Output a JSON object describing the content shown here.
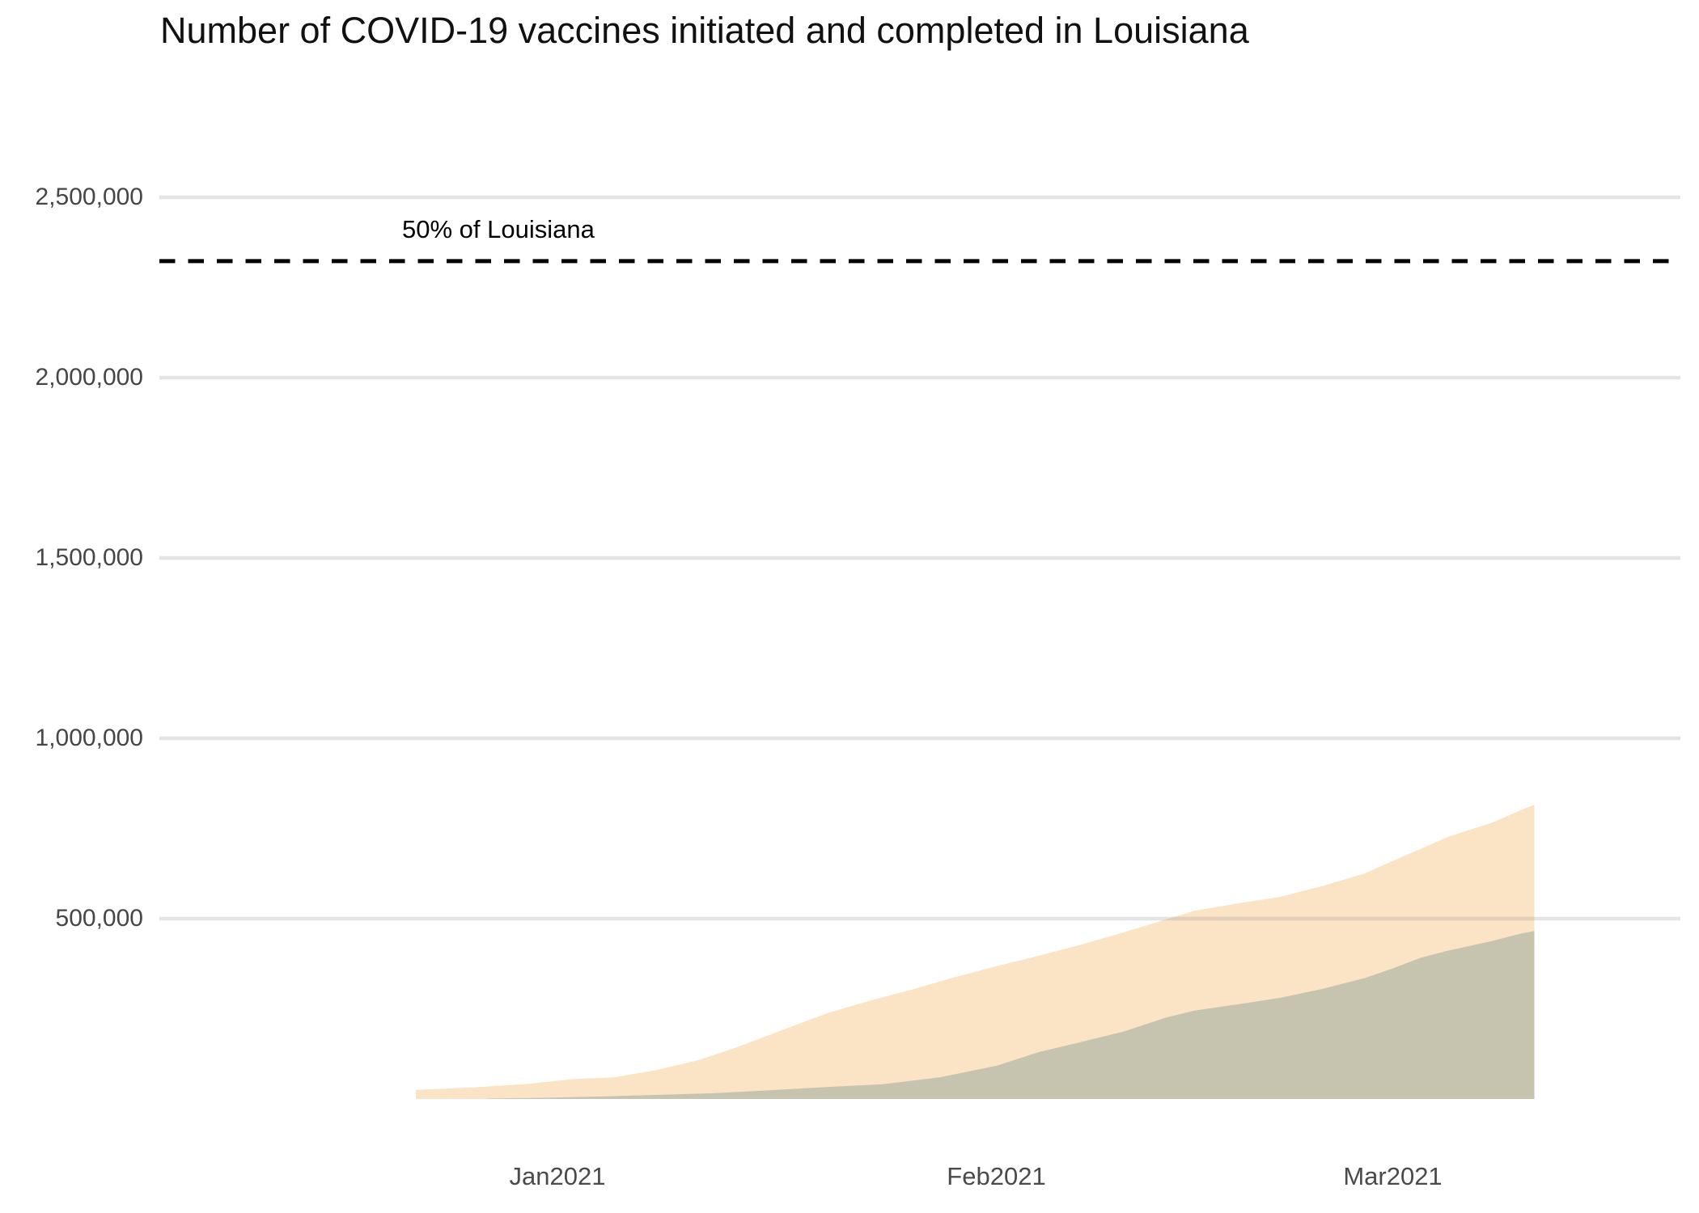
{
  "title": "Number of COVID-19 vaccines initiated and completed in Louisiana",
  "background_color": "#ffffff",
  "chart_data": {
    "type": "area",
    "title": "Number of COVID-19 vaccines initiated and completed in Louisiana",
    "xlabel": "",
    "ylabel": "",
    "grid": true,
    "gridline_color": "#e9e9e9",
    "legend_position": "none",
    "x_axis": {
      "ticks": [
        {
          "label": "Jan2021",
          "date": "2021-01-01"
        },
        {
          "label": "Feb2021",
          "date": "2021-02-01"
        },
        {
          "label": "Mar2021",
          "date": "2021-03-01"
        }
      ]
    },
    "y_axis": {
      "range": [
        0,
        2600000
      ],
      "ticks": [
        {
          "label": "500,000",
          "value": 500000
        },
        {
          "label": "1,000,000",
          "value": 1000000
        },
        {
          "label": "1,500,000",
          "value": 1500000
        },
        {
          "label": "2,000,000",
          "value": 2000000
        },
        {
          "label": "2,500,000",
          "value": 2500000
        }
      ]
    },
    "reference_line": {
      "label": "50% of Louisiana",
      "value": 2323000,
      "style": "dashed",
      "color": "#000000"
    },
    "series": [
      {
        "name": "initiated",
        "color": "#fbe3c5",
        "points": [
          {
            "date": "2020-12-22",
            "value": 25000
          },
          {
            "date": "2020-12-26",
            "value": 32000
          },
          {
            "date": "2020-12-30",
            "value": 42000
          },
          {
            "date": "2021-01-02",
            "value": 55000
          },
          {
            "date": "2021-01-05",
            "value": 60000
          },
          {
            "date": "2021-01-08",
            "value": 80000
          },
          {
            "date": "2021-01-11",
            "value": 108000
          },
          {
            "date": "2021-01-14",
            "value": 148000
          },
          {
            "date": "2021-01-17",
            "value": 193000
          },
          {
            "date": "2021-01-20",
            "value": 237000
          },
          {
            "date": "2021-01-23",
            "value": 272000
          },
          {
            "date": "2021-01-26",
            "value": 303000
          },
          {
            "date": "2021-01-29",
            "value": 337000
          },
          {
            "date": "2021-02-01",
            "value": 368000
          },
          {
            "date": "2021-02-04",
            "value": 397000
          },
          {
            "date": "2021-02-07",
            "value": 428000
          },
          {
            "date": "2021-02-10",
            "value": 462000
          },
          {
            "date": "2021-02-13",
            "value": 498000
          },
          {
            "date": "2021-02-15",
            "value": 522000
          },
          {
            "date": "2021-02-18",
            "value": 542000
          },
          {
            "date": "2021-02-21",
            "value": 560000
          },
          {
            "date": "2021-02-24",
            "value": 590000
          },
          {
            "date": "2021-02-27",
            "value": 625000
          },
          {
            "date": "2021-03-01",
            "value": 660000
          },
          {
            "date": "2021-03-03",
            "value": 694000
          },
          {
            "date": "2021-03-05",
            "value": 728000
          },
          {
            "date": "2021-03-08",
            "value": 766000
          },
          {
            "date": "2021-03-10",
            "value": 800000
          },
          {
            "date": "2021-03-11",
            "value": 816000
          }
        ]
      },
      {
        "name": "completed",
        "color": "#c6c3ae",
        "points": [
          {
            "date": "2020-12-27",
            "value": 1000
          },
          {
            "date": "2021-01-01",
            "value": 4000
          },
          {
            "date": "2021-01-06",
            "value": 9000
          },
          {
            "date": "2021-01-12",
            "value": 16000
          },
          {
            "date": "2021-01-16",
            "value": 24000
          },
          {
            "date": "2021-01-20",
            "value": 33000
          },
          {
            "date": "2021-01-24",
            "value": 41000
          },
          {
            "date": "2021-01-28",
            "value": 60000
          },
          {
            "date": "2021-02-01",
            "value": 92000
          },
          {
            "date": "2021-02-04",
            "value": 130000
          },
          {
            "date": "2021-02-07",
            "value": 158000
          },
          {
            "date": "2021-02-10",
            "value": 187000
          },
          {
            "date": "2021-02-13",
            "value": 226000
          },
          {
            "date": "2021-02-15",
            "value": 245000
          },
          {
            "date": "2021-02-18",
            "value": 262000
          },
          {
            "date": "2021-02-21",
            "value": 280000
          },
          {
            "date": "2021-02-24",
            "value": 305000
          },
          {
            "date": "2021-02-27",
            "value": 335000
          },
          {
            "date": "2021-03-01",
            "value": 362000
          },
          {
            "date": "2021-03-03",
            "value": 392000
          },
          {
            "date": "2021-03-05",
            "value": 412000
          },
          {
            "date": "2021-03-08",
            "value": 438000
          },
          {
            "date": "2021-03-10",
            "value": 458000
          },
          {
            "date": "2021-03-11",
            "value": 466000
          }
        ]
      }
    ]
  }
}
